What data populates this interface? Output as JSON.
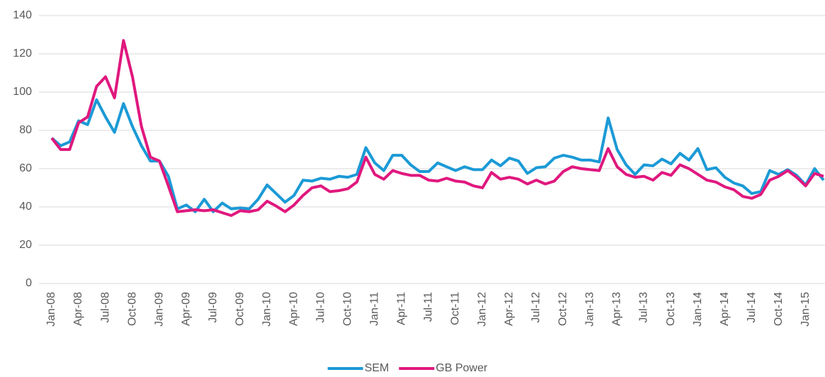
{
  "chart_data": {
    "type": "line",
    "categories": [
      "Jan-08",
      null,
      null,
      "Apr-08",
      null,
      null,
      "Jul-08",
      null,
      null,
      "Oct-08",
      null,
      null,
      "Jan-09",
      null,
      null,
      "Apr-09",
      null,
      null,
      "Jul-09",
      null,
      null,
      "Oct-09",
      null,
      null,
      "Jan-10",
      null,
      null,
      "Apr-10",
      null,
      null,
      "Jul-10",
      null,
      null,
      "Oct-10",
      null,
      null,
      "Jan-11",
      null,
      null,
      "Apr-11",
      null,
      null,
      "Jul-11",
      null,
      null,
      "Oct-11",
      null,
      null,
      "Jan-12",
      null,
      null,
      "Apr-12",
      null,
      null,
      "Jul-12",
      null,
      null,
      "Oct-12",
      null,
      null,
      "Jan-13",
      null,
      null,
      "Apr-13",
      null,
      null,
      "Jul-13",
      null,
      null,
      "Oct-13",
      null,
      null,
      "Jan-14",
      null,
      null,
      "Apr-14",
      null,
      null,
      "Jul-14",
      null,
      null,
      "Oct-14",
      null,
      null,
      "Jan-15",
      null,
      null
    ],
    "series": [
      {
        "name": "SEM",
        "color": "#1b9ad6",
        "values": [
          76,
          72,
          74,
          85,
          83,
          96,
          87,
          79,
          94,
          82,
          72,
          64,
          64,
          56,
          39,
          41,
          37.5,
          44,
          37.5,
          42,
          39,
          39.5,
          39,
          44,
          51.5,
          47,
          42.5,
          46,
          54,
          53.5,
          55,
          54.5,
          56,
          55.5,
          57,
          71,
          63,
          59,
          67,
          67,
          62,
          58.5,
          58.5,
          63,
          61,
          59,
          61,
          59.5,
          59.5,
          64.5,
          61.5,
          65.5,
          64,
          57.5,
          60.5,
          61,
          65.5,
          67,
          66,
          64.5,
          64.5,
          63.5,
          86.5,
          70,
          62,
          57,
          62,
          61.5,
          65,
          62.5,
          68,
          64.5,
          70.5,
          59.5,
          60.5,
          55.5,
          52.5,
          51,
          47,
          48,
          59,
          57,
          59.5,
          56.5,
          51.5,
          60,
          54
        ]
      },
      {
        "name": "GB Power",
        "color": "#e0187e",
        "values": [
          76,
          70,
          70,
          84,
          87,
          103,
          108,
          97,
          127,
          108,
          82,
          66,
          64,
          51,
          37.5,
          38,
          38.5,
          38,
          38.5,
          37,
          35.5,
          38,
          37.5,
          38.5,
          43,
          40.5,
          37.5,
          41,
          46,
          50,
          51,
          48,
          48.5,
          49.5,
          53,
          66,
          57,
          54.5,
          59,
          57.5,
          56.5,
          56.5,
          54,
          53.5,
          55,
          53.5,
          53,
          51,
          50,
          58,
          54.5,
          55.5,
          54.5,
          52,
          54,
          52,
          53.5,
          58.5,
          61,
          60,
          59.5,
          59,
          70.5,
          61,
          57,
          55.5,
          56,
          54,
          58,
          56.5,
          62,
          60,
          57,
          54,
          53,
          50.5,
          49,
          45.5,
          44.5,
          46.5,
          54,
          56,
          59,
          55.5,
          51,
          57.5,
          56
        ]
      }
    ],
    "ylim": [
      0,
      140
    ],
    "yticks": [
      0,
      20,
      40,
      60,
      80,
      100,
      120,
      140
    ],
    "grid": true,
    "legend": "bottom"
  }
}
